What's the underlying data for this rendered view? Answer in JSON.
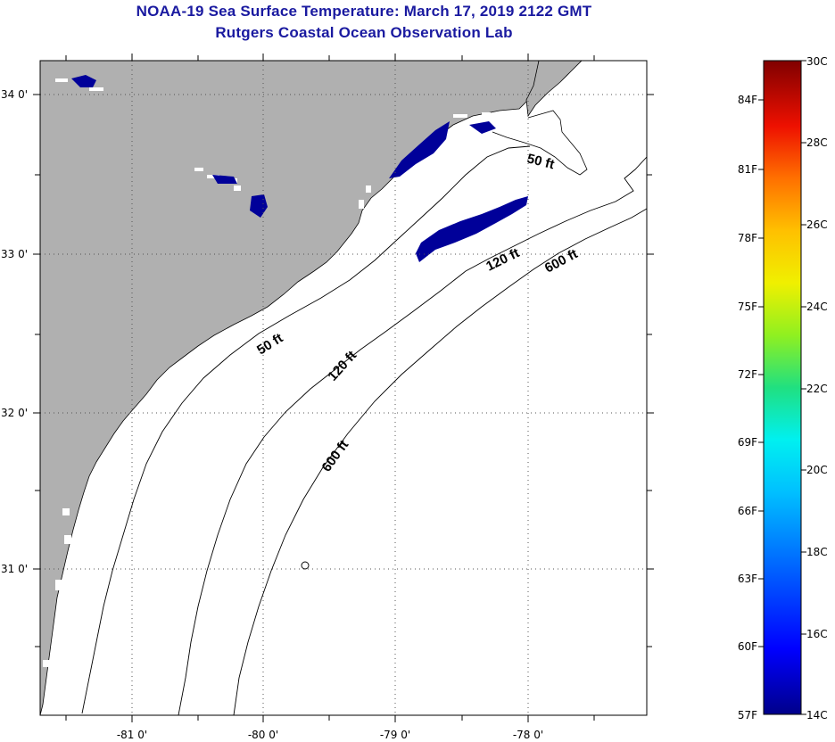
{
  "title": "NOAA-19 Sea Surface Temperature:  March 17, 2019 2122 GMT",
  "subtitle": "Rutgers Coastal Ocean Observation Lab",
  "map": {
    "lon_labels": [
      "-81 0'",
      "-80 0'",
      "-79 0'",
      "-78 0'"
    ],
    "lat_labels": [
      "34 0'",
      "33 0'",
      "32 0'",
      "31 0'"
    ],
    "contour_labels": [
      {
        "text": "50 ft"
      },
      {
        "text": "50 ft"
      },
      {
        "text": "120 ft"
      },
      {
        "text": "120 ft"
      },
      {
        "text": "600 ft"
      },
      {
        "text": "600 ft"
      }
    ],
    "colors": {
      "land": "#b0b0b0",
      "cold_water": "#000099",
      "ocean_masked": "#ffffff"
    }
  },
  "colorbar": {
    "fahrenheit": [
      "84F",
      "81F",
      "78F",
      "75F",
      "72F",
      "69F",
      "66F",
      "63F",
      "60F",
      "57F"
    ],
    "celsius": [
      "30C",
      "28C",
      "26C",
      "24C",
      "22C",
      "20C",
      "18C",
      "16C",
      "14C"
    ],
    "min_c": 14,
    "max_c": 30
  }
}
